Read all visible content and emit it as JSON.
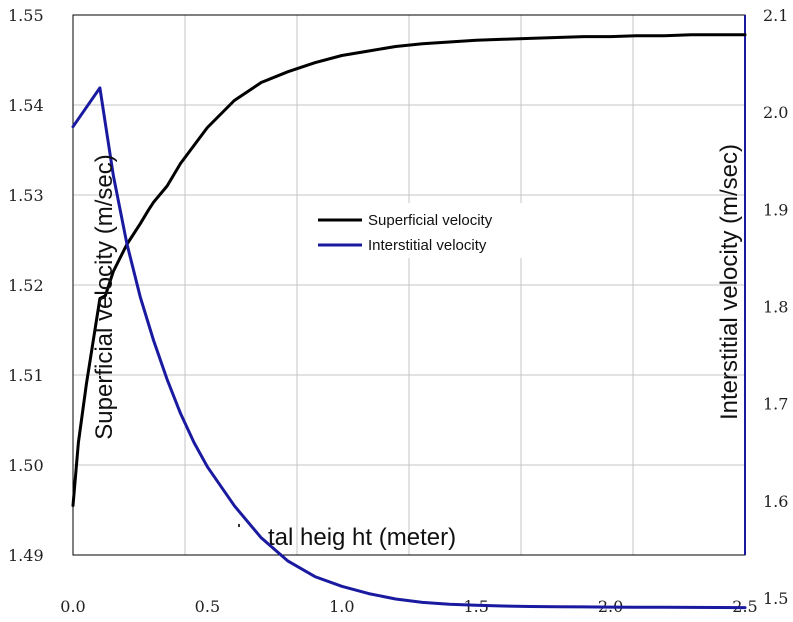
{
  "chart_data": {
    "type": "line",
    "xlabel": "tal heig ht (meter)",
    "ylabel_left": "Superficial velocity (m/sec)",
    "ylabel_right": "Interstitial velocity (m/sec)",
    "xlim": [
      0,
      2.5
    ],
    "ylim_left": [
      1.49,
      1.55
    ],
    "ylim_right": [
      1.5,
      2.1
    ],
    "x_ticks": [
      "0.0",
      "0.5",
      "1.0",
      "1.5",
      "2.0",
      "2.5"
    ],
    "y_ticks_left": [
      "1.49",
      "1.50",
      "1.51",
      "1.52",
      "1.53",
      "1.54",
      "1.55"
    ],
    "y_ticks_right": [
      "1.5",
      "1.6",
      "1.7",
      "1.8",
      "1.9",
      "2.0",
      "2.1"
    ],
    "grid": true,
    "legend_position": "center",
    "series": [
      {
        "name": "Superficial velocity",
        "color": "#000000",
        "axis": "left",
        "x": [
          0.0,
          0.02,
          0.05,
          0.1,
          0.12,
          0.15,
          0.2,
          0.25,
          0.28,
          0.3,
          0.35,
          0.4,
          0.5,
          0.6,
          0.7,
          0.8,
          0.9,
          1.0,
          1.1,
          1.2,
          1.3,
          1.4,
          1.5,
          1.6,
          1.7,
          1.8,
          1.9,
          2.0,
          2.1,
          2.2,
          2.3,
          2.4,
          2.5
        ],
        "values": [
          1.4955,
          1.5025,
          1.509,
          1.5185,
          1.5188,
          1.5215,
          1.5245,
          1.5268,
          1.5283,
          1.5292,
          1.531,
          1.5335,
          1.5375,
          1.5405,
          1.5425,
          1.5437,
          1.5447,
          1.5455,
          1.546,
          1.5465,
          1.5468,
          1.547,
          1.5472,
          1.5473,
          1.5474,
          1.5475,
          1.5476,
          1.5476,
          1.5477,
          1.5477,
          1.5478,
          1.5478,
          1.5478
        ]
      },
      {
        "name": "Interstitial velocity",
        "color": "#1a1aa0",
        "axis": "right",
        "x": [
          0.0,
          0.05,
          0.1,
          0.15,
          0.2,
          0.25,
          0.3,
          0.35,
          0.4,
          0.45,
          0.5,
          0.6,
          0.7,
          0.8,
          0.9,
          1.0,
          1.1,
          1.2,
          1.3,
          1.4,
          1.5,
          1.6,
          1.7,
          1.8,
          1.9,
          2.0,
          2.1,
          2.2,
          2.3,
          2.4,
          2.5
        ],
        "values": [
          1.985,
          2.005,
          2.025,
          1.935,
          1.865,
          1.81,
          1.765,
          1.725,
          1.69,
          1.66,
          1.635,
          1.595,
          1.562,
          1.538,
          1.522,
          1.512,
          1.5045,
          1.499,
          1.4955,
          1.4935,
          1.4925,
          1.4918,
          1.4913,
          1.491,
          1.4908,
          1.4906,
          1.4905,
          1.4904,
          1.4903,
          1.4902,
          1.4901
        ]
      }
    ]
  }
}
